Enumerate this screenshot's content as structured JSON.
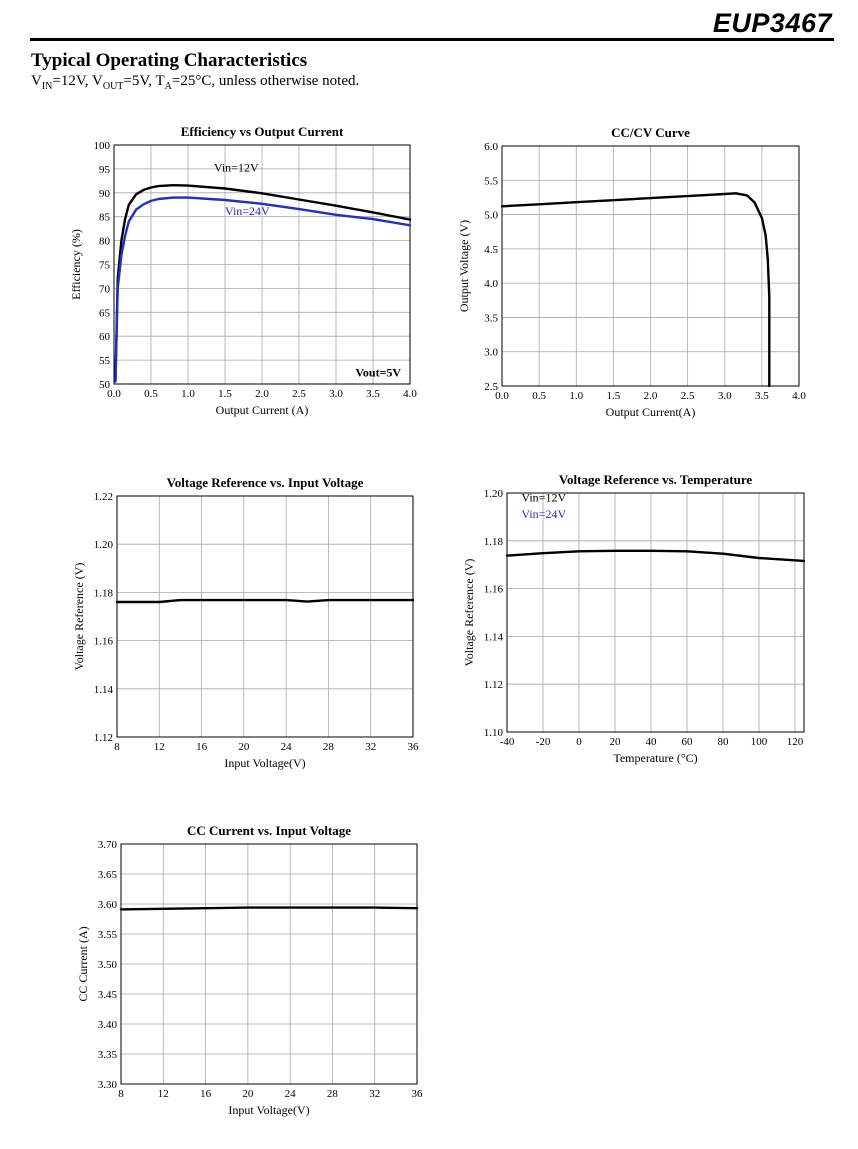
{
  "header": {
    "brand": "EUP3467"
  },
  "section": {
    "title": "Typical Operating Characteristics",
    "conditions": {
      "vin_sym": "V",
      "vin_sub": "IN",
      "vin_val": "=12V, ",
      "vout_sym": "V",
      "vout_sub": "OUT",
      "vout_val": "=5V, ",
      "ta_sym": "T",
      "ta_sub": "A",
      "ta_val": "=25°C, unless otherwise noted."
    }
  },
  "chart_data": [
    {
      "type": "line",
      "title": "Efficiency vs Output Current",
      "xlabel": "Output Current (A)",
      "ylabel": "Efficiency (%)",
      "xlim": [
        0,
        4
      ],
      "ylim": [
        50,
        100
      ],
      "xticks": [
        0,
        0.5,
        1,
        1.5,
        2,
        2.5,
        3,
        3.5,
        4
      ],
      "xtick_labels": [
        "0.0",
        "0.5",
        "1.0",
        "1.5",
        "2.0",
        "2.5",
        "3.0",
        "3.5",
        "4.0"
      ],
      "yticks": [
        50,
        55,
        60,
        65,
        70,
        75,
        80,
        85,
        90,
        95,
        100
      ],
      "ytick_labels": [
        "50",
        "55",
        "60",
        "65",
        "70",
        "75",
        "80",
        "85",
        "90",
        "95",
        "100"
      ],
      "grid": true,
      "series": [
        {
          "name": "Vin=12V",
          "color": "#000000",
          "x": [
            0.02,
            0.05,
            0.1,
            0.15,
            0.2,
            0.3,
            0.4,
            0.5,
            0.6,
            0.8,
            1.0,
            1.5,
            2.0,
            2.5,
            3.0,
            3.5,
            4.0
          ],
          "y": [
            51,
            72,
            80,
            84.5,
            87.5,
            89.7,
            90.6,
            91.1,
            91.4,
            91.6,
            91.5,
            90.9,
            89.9,
            88.6,
            87.3,
            85.9,
            84.4
          ]
        },
        {
          "name": "Vin=24V",
          "color": "#1f2fbf",
          "x": [
            0.02,
            0.05,
            0.1,
            0.15,
            0.2,
            0.3,
            0.4,
            0.5,
            0.6,
            0.8,
            1.0,
            1.5,
            2.0,
            2.5,
            3.0,
            3.5,
            4.0
          ],
          "y": [
            50.5,
            70,
            77,
            81,
            84,
            86.5,
            87.6,
            88.3,
            88.7,
            89,
            89,
            88.5,
            87.7,
            86.6,
            85.4,
            84.5,
            83.2
          ]
        }
      ],
      "annotations": [
        {
          "text": "Vin=12V",
          "x": 1.35,
          "y": 94.5,
          "color": "#000000",
          "weight": "normal"
        },
        {
          "text": "Vin=24V",
          "x": 1.5,
          "y": 85.4,
          "color": "#1f2fbf",
          "weight": "normal"
        },
        {
          "text": "Vout=5V",
          "x": 3.88,
          "y": 51.6,
          "color": "#000000",
          "weight": "bold",
          "anchor": "end"
        }
      ]
    },
    {
      "type": "line",
      "title": "CC/CV Curve",
      "xlabel": "Output Current(A)",
      "ylabel": "Output Voltage (V)",
      "xlim": [
        0,
        4
      ],
      "ylim": [
        2.5,
        6
      ],
      "xticks": [
        0,
        0.5,
        1,
        1.5,
        2,
        2.5,
        3,
        3.5,
        4
      ],
      "xtick_labels": [
        "0.0",
        "0.5",
        "1.0",
        "1.5",
        "2.0",
        "2.5",
        "3.0",
        "3.5",
        "4.0"
      ],
      "yticks": [
        2.5,
        3,
        3.5,
        4,
        4.5,
        5,
        5.5,
        6
      ],
      "ytick_labels": [
        "2.5",
        "3.0",
        "3.5",
        "4.0",
        "4.5",
        "5.0",
        "5.5",
        "6.0"
      ],
      "grid": true,
      "series": [
        {
          "name": "",
          "color": "#000000",
          "x": [
            0,
            0.5,
            1,
            1.5,
            2,
            2.5,
            3,
            3.15,
            3.3,
            3.4,
            3.5,
            3.55,
            3.58,
            3.6,
            3.6
          ],
          "y": [
            5.12,
            5.15,
            5.18,
            5.21,
            5.24,
            5.27,
            5.3,
            5.31,
            5.28,
            5.18,
            4.95,
            4.7,
            4.35,
            3.8,
            2.5
          ]
        }
      ],
      "annotations": []
    },
    {
      "type": "line",
      "title": "Voltage Reference vs. Input Voltage",
      "xlabel": "Input Voltage(V)",
      "ylabel": "Voltage Reference (V)",
      "xlim": [
        8,
        36
      ],
      "ylim": [
        1.12,
        1.22
      ],
      "xticks": [
        8,
        12,
        16,
        20,
        24,
        28,
        32,
        36
      ],
      "xtick_labels": [
        "8",
        "12",
        "16",
        "20",
        "24",
        "28",
        "32",
        "36"
      ],
      "yticks": [
        1.12,
        1.14,
        1.16,
        1.18,
        1.2,
        1.22
      ],
      "ytick_labels": [
        "1.12",
        "1.14",
        "1.16",
        "1.18",
        "1.20",
        "1.22"
      ],
      "grid": true,
      "series": [
        {
          "name": "",
          "color": "#000000",
          "x": [
            8,
            12,
            14,
            16,
            20,
            24,
            26,
            28,
            32,
            36
          ],
          "y": [
            1.176,
            1.176,
            1.1768,
            1.1768,
            1.1768,
            1.1768,
            1.1762,
            1.1768,
            1.1768,
            1.1768
          ]
        }
      ],
      "annotations": []
    },
    {
      "type": "line",
      "title": "Voltage Reference vs. Temperature",
      "xlabel": "Temperature (°C)",
      "ylabel": "Voltage Reference (V)",
      "xlim": [
        -40,
        125
      ],
      "ylim": [
        1.1,
        1.2
      ],
      "xticks": [
        -40,
        -20,
        0,
        20,
        40,
        60,
        80,
        100,
        120
      ],
      "xtick_labels": [
        "-40",
        "-20",
        "0",
        "20",
        "40",
        "60",
        "80",
        "100",
        "120"
      ],
      "yticks": [
        1.1,
        1.12,
        1.14,
        1.16,
        1.18,
        1.2
      ],
      "ytick_labels": [
        "1.10",
        "1.12",
        "1.14",
        "1.16",
        "1.18",
        "1.20"
      ],
      "grid": true,
      "series": [
        {
          "name": "",
          "color": "#000000",
          "x": [
            -40,
            -20,
            0,
            20,
            40,
            60,
            80,
            100,
            125
          ],
          "y": [
            1.1738,
            1.1748,
            1.1756,
            1.1758,
            1.1758,
            1.1756,
            1.1746,
            1.1728,
            1.1716
          ]
        }
      ],
      "annotations": [
        {
          "text": "Vin=12V",
          "x": -32,
          "y": 1.1965,
          "color": "#000000",
          "weight": "normal"
        },
        {
          "text": "Vin=24V",
          "x": -32,
          "y": 1.1895,
          "color": "#1f2fbf",
          "weight": "normal"
        }
      ]
    },
    {
      "type": "line",
      "title": "CC Current vs. Input Voltage",
      "xlabel": "Input Voltage(V)",
      "ylabel": "CC Current (A)",
      "xlim": [
        8,
        36
      ],
      "ylim": [
        3.3,
        3.7
      ],
      "xticks": [
        8,
        12,
        16,
        20,
        24,
        28,
        32,
        36
      ],
      "xtick_labels": [
        "8",
        "12",
        "16",
        "20",
        "24",
        "28",
        "32",
        "36"
      ],
      "yticks": [
        3.3,
        3.35,
        3.4,
        3.45,
        3.5,
        3.55,
        3.6,
        3.65,
        3.7
      ],
      "ytick_labels": [
        "3.30",
        "3.35",
        "3.40",
        "3.45",
        "3.50",
        "3.55",
        "3.60",
        "3.65",
        "3.70"
      ],
      "grid": true,
      "series": [
        {
          "name": "",
          "color": "#000000",
          "x": [
            8,
            12,
            16,
            20,
            24,
            28,
            32,
            36
          ],
          "y": [
            3.591,
            3.592,
            3.593,
            3.594,
            3.594,
            3.594,
            3.594,
            3.593
          ]
        }
      ],
      "annotations": []
    }
  ]
}
